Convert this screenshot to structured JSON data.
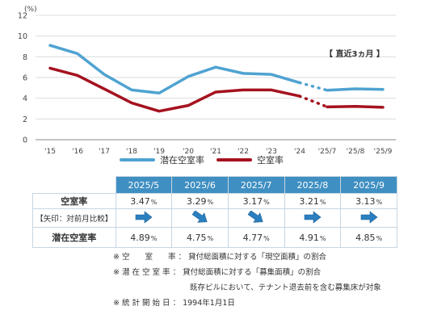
{
  "chart_data": {
    "type": "line",
    "unit_label": "(%)",
    "categories": [
      "'15",
      "'16",
      "'17",
      "'18",
      "'19",
      "'20",
      "'21",
      "'22",
      "'23",
      "'24",
      "'25/7",
      "'25/8",
      "'25/9"
    ],
    "ylim": [
      0,
      12
    ],
    "yticks": [
      0,
      2,
      4,
      6,
      8,
      10,
      12
    ],
    "grid": true,
    "series": [
      {
        "name": "潜在空室率",
        "color": "#4fa3d1",
        "values": [
          9.1,
          8.3,
          6.3,
          4.8,
          4.5,
          6.1,
          7.0,
          6.4,
          6.3,
          5.5,
          4.77,
          4.91,
          4.85
        ]
      },
      {
        "name": "空室率",
        "color": "#a5121f",
        "values": [
          6.9,
          6.2,
          4.9,
          3.55,
          2.75,
          3.3,
          4.6,
          4.8,
          4.8,
          4.2,
          3.17,
          3.21,
          3.13
        ]
      }
    ],
    "annotation": "【 直近3ヵ月 】"
  },
  "table": {
    "months": [
      "2025/5",
      "2025/6",
      "2025/7",
      "2025/8",
      "2025/9"
    ],
    "row_vacancy_label": "空室率",
    "vacancy": [
      "3.47",
      "3.29",
      "3.17",
      "3.21",
      "3.13"
    ],
    "row_arrow_label": "【矢印：対前月比較】",
    "arrows": [
      "right",
      "down-right",
      "down-right",
      "right",
      "right"
    ],
    "row_potential_label": "潜在空室率",
    "potential": [
      "4.89",
      "4.75",
      "4.77",
      "4.91",
      "4.85"
    ],
    "pct_symbol": "%",
    "arrow_color": "#2a7fc0"
  },
  "notes": [
    "※ 空　　室　　率 ： 貸付総面積に対する「現空面積」の割合",
    "※ 潜 在 空 室 率 ： 貸付総面積に対する「募集面積」の割合",
    "　　　　　　　　　　既存ビルにおいて、テナント退去前を含む募集床が対象",
    "※ 統 計 開 始 日 ： 1994年1月1日"
  ]
}
